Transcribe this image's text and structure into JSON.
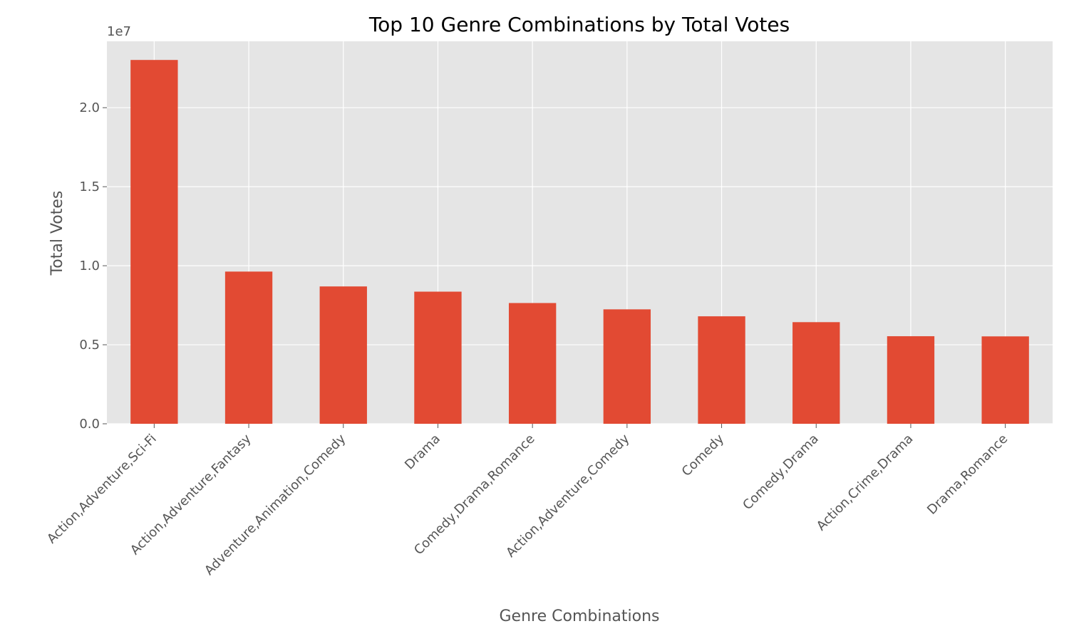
{
  "chart_data": {
    "type": "bar",
    "title": "Top 10 Genre Combinations by Total Votes",
    "xlabel": "Genre Combinations",
    "ylabel": "Total Votes",
    "y_offset_text": "1e7",
    "categories": [
      "Action,Adventure,Sci-Fi",
      "Action,Adventure,Fantasy",
      "Adventure,Animation,Comedy",
      "Drama",
      "Comedy,Drama,Romance",
      "Action,Adventure,Comedy",
      "Comedy",
      "Comedy,Drama",
      "Action,Crime,Drama",
      "Drama,Romance"
    ],
    "values": [
      23020000,
      9630000,
      8690000,
      8360000,
      7640000,
      7240000,
      6800000,
      6430000,
      5540000,
      5530000
    ],
    "y_ticks": [
      0,
      5000000,
      10000000,
      15000000,
      20000000
    ],
    "y_tick_labels": [
      "0.0",
      "0.5",
      "1.0",
      "1.5",
      "2.0"
    ],
    "ylim": [
      0,
      24200000
    ],
    "grid": true,
    "colors": {
      "bar": "#e24a33",
      "plot_background": "#e5e5e5",
      "grid": "#ffffff"
    }
  }
}
